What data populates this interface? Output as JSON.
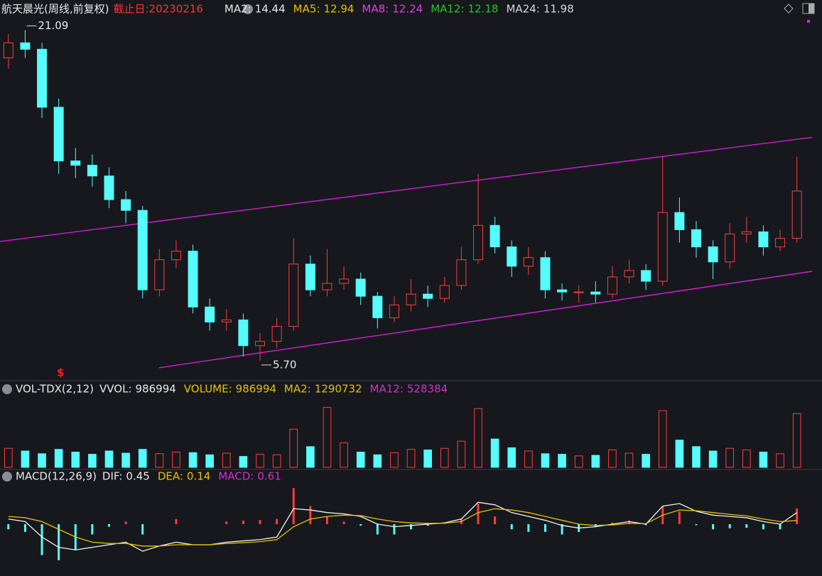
{
  "header": {
    "title": "航天晨光(周线,前复权)",
    "date": "截止日:20230216",
    "indicators": [
      {
        "label": "MA2:",
        "value": 14.44,
        "color": "#e8e8e8"
      },
      {
        "label": "MA5:",
        "value": 12.94,
        "color": "#e6c200"
      },
      {
        "label": "MA8:",
        "value": 12.24,
        "color": "#e040e0"
      },
      {
        "label": "MA12:",
        "value": 12.18,
        "color": "#2ec02e"
      },
      {
        "label": "MA24:",
        "value": 11.98,
        "color": "#d8d8d8"
      }
    ]
  },
  "chart_data": [
    {
      "type": "candlestick",
      "annotation": "$",
      "xlim": [
        -0.5,
        48.2
      ],
      "ylim": [
        5.2,
        21.6
      ],
      "up_color": "#ff3c3c",
      "down_color": "#54fcfc",
      "open": [
        19.8,
        20.5,
        20.2,
        17.5,
        15.0,
        14.8,
        14.3,
        13.2,
        12.7,
        9.0,
        10.4,
        10.8,
        8.2,
        7.5,
        7.6,
        6.4,
        6.6,
        7.3,
        10.2,
        9.0,
        9.3,
        9.5,
        8.7,
        7.7,
        8.3,
        8.8,
        8.6,
        9.2,
        10.4,
        12.0,
        11.0,
        10.1,
        10.5,
        9.0,
        8.9,
        8.9,
        8.8,
        9.6,
        9.9,
        9.4,
        12.6,
        11.8,
        11.0,
        10.3,
        11.6,
        11.7,
        11.0,
        11.4
      ],
      "high": [
        20.9,
        21.09,
        20.5,
        17.9,
        15.6,
        15.3,
        14.7,
        13.6,
        12.9,
        10.9,
        11.3,
        11.1,
        8.6,
        8.1,
        7.9,
        7.0,
        7.7,
        11.4,
        10.6,
        10.9,
        10.1,
        9.8,
        8.9,
        8.7,
        9.5,
        9.2,
        9.6,
        11.0,
        14.4,
        12.4,
        11.3,
        11.0,
        10.8,
        9.3,
        9.2,
        9.4,
        10.1,
        10.4,
        10.2,
        15.2,
        13.3,
        12.2,
        11.3,
        12.1,
        12.4,
        12.0,
        11.8,
        15.2
      ],
      "low": [
        19.3,
        19.8,
        17.0,
        14.4,
        14.2,
        13.8,
        12.8,
        12.1,
        8.6,
        8.7,
        10.0,
        7.9,
        7.1,
        7.1,
        5.9,
        5.7,
        6.3,
        7.1,
        8.7,
        8.7,
        9.0,
        8.3,
        7.2,
        7.5,
        8.0,
        8.2,
        8.4,
        9.0,
        10.2,
        10.7,
        9.6,
        9.7,
        8.6,
        8.5,
        8.4,
        8.4,
        8.6,
        9.3,
        9.0,
        9.2,
        11.2,
        10.5,
        9.5,
        10.0,
        11.2,
        10.6,
        10.8,
        11.2
      ],
      "close": [
        20.5,
        20.2,
        17.5,
        15.0,
        14.8,
        14.3,
        13.2,
        12.7,
        9.0,
        10.4,
        10.8,
        8.2,
        7.5,
        7.6,
        6.4,
        6.6,
        7.3,
        10.2,
        9.0,
        9.3,
        9.5,
        8.7,
        7.7,
        8.3,
        8.8,
        8.6,
        9.2,
        10.4,
        12.0,
        11.0,
        10.1,
        10.5,
        9.0,
        8.9,
        8.9,
        8.8,
        9.6,
        9.9,
        9.4,
        12.6,
        11.8,
        11.0,
        10.3,
        11.6,
        11.7,
        11.0,
        11.4,
        13.6
      ],
      "trendlines": [
        {
          "x": [
            -0.5,
            47.9
          ],
          "y": [
            11.25,
            16.1
          ],
          "color": "#e020e0"
        },
        {
          "x": [
            8.97,
            47.9
          ],
          "y": [
            5.37,
            9.86
          ],
          "color": "#e020e0"
        }
      ],
      "extremes": [
        {
          "value": 21.09
        },
        {
          "value": 5.7,
          "label": "5.70"
        }
      ]
    },
    {
      "type": "bar",
      "title": "VOL-TDX(2,12)",
      "xlim": [
        -0.5,
        48.2
      ],
      "ylim": [
        0,
        1200000
      ],
      "indicators": [
        {
          "label": "VVOL:",
          "value": 986994,
          "color": "#e8e8e8"
        },
        {
          "label": "VOLUME:",
          "value": 986994,
          "color": "#e6c200"
        },
        {
          "label": "MA2:",
          "value": 1290732,
          "color": "#e6c200"
        },
        {
          "label": "MA12:",
          "value": 528384,
          "color": "#d030d0"
        }
      ],
      "values": [
        350000,
        300000,
        250000,
        330000,
        280000,
        240000,
        300000,
        260000,
        330000,
        250000,
        280000,
        270000,
        230000,
        260000,
        200000,
        240000,
        230000,
        700000,
        380000,
        1100000,
        450000,
        280000,
        230000,
        270000,
        330000,
        320000,
        350000,
        480000,
        1080000,
        520000,
        360000,
        300000,
        250000,
        240000,
        210000,
        220000,
        320000,
        260000,
        240000,
        1040000,
        500000,
        380000,
        300000,
        350000,
        320000,
        280000,
        250000,
        986994
      ]
    },
    {
      "type": "macd",
      "title": "MACD(12,26,9)",
      "xlim": [
        -0.5,
        48.2
      ],
      "ylim": [
        -1.6,
        1.6
      ],
      "indicators": [
        {
          "label": "DIF:",
          "value": 0.45,
          "color": "#e8e8e8"
        },
        {
          "label": "DEA:",
          "value": 0.14,
          "color": "#e6c200"
        },
        {
          "label": "MACD:",
          "value": 0.61,
          "color": "#d030d0"
        }
      ],
      "series": [
        {
          "name": "DIF",
          "color": "#f0f0f0",
          "values": [
            0.2,
            0.1,
            -0.5,
            -0.9,
            -1.0,
            -0.9,
            -0.8,
            -0.7,
            -1.05,
            -0.85,
            -0.7,
            -0.8,
            -0.8,
            -0.7,
            -0.65,
            -0.6,
            -0.5,
            0.6,
            0.55,
            0.45,
            0.4,
            0.3,
            0.0,
            -0.1,
            -0.05,
            0.0,
            0.05,
            0.2,
            0.85,
            0.75,
            0.45,
            0.3,
            0.15,
            -0.05,
            -0.15,
            -0.1,
            0.0,
            0.1,
            0.0,
            0.7,
            0.8,
            0.5,
            0.35,
            0.3,
            0.25,
            0.1,
            0.0,
            0.45
          ]
        },
        {
          "name": "DEA",
          "color": "#e6c200",
          "values": [
            0.3,
            0.25,
            0.1,
            -0.2,
            -0.5,
            -0.7,
            -0.75,
            -0.75,
            -0.85,
            -0.85,
            -0.8,
            -0.8,
            -0.8,
            -0.75,
            -0.72,
            -0.68,
            -0.6,
            -0.1,
            0.2,
            0.3,
            0.35,
            0.33,
            0.2,
            0.1,
            0.05,
            0.03,
            0.04,
            0.1,
            0.45,
            0.6,
            0.55,
            0.45,
            0.3,
            0.15,
            0.0,
            -0.05,
            -0.03,
            0.03,
            0.02,
            0.35,
            0.55,
            0.52,
            0.45,
            0.38,
            0.32,
            0.2,
            0.1,
            0.14
          ]
        },
        {
          "name": "MACD",
          "up_color": "#ff3c3c",
          "down_color": "#54fcfc",
          "values": [
            -0.2,
            -0.3,
            -1.2,
            -1.4,
            -1.0,
            -0.4,
            -0.1,
            0.1,
            -0.4,
            0.0,
            0.2,
            0.0,
            0.0,
            0.1,
            0.14,
            0.16,
            0.2,
            1.4,
            0.7,
            0.3,
            0.1,
            -0.06,
            -0.4,
            -0.4,
            -0.2,
            -0.06,
            0.02,
            0.2,
            0.8,
            0.3,
            -0.2,
            -0.3,
            -0.3,
            -0.4,
            -0.3,
            -0.1,
            0.06,
            0.14,
            -0.04,
            0.7,
            0.5,
            -0.04,
            -0.2,
            -0.16,
            -0.14,
            -0.2,
            -0.2,
            0.61
          ]
        }
      ]
    }
  ]
}
